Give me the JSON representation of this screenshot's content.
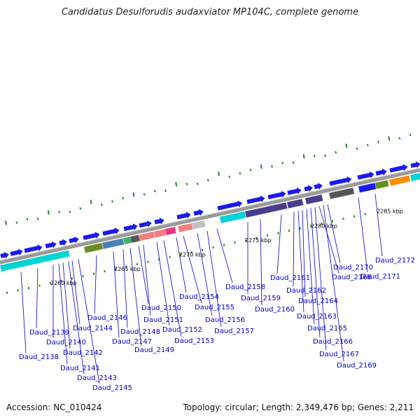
{
  "title": "Candidatus Desulforudis audaxviator MP104C, complete genome",
  "footer": {
    "accession": "Accession: NC_010424",
    "summary": "Topology: circular; Length: 2,349,476 bp; Genes: 2,211"
  },
  "colors": {
    "label": "#0000cc",
    "leader": "#0000cc",
    "backbone": "#9a9a9a",
    "gc_tick": "#228b22",
    "forward_gene": "#1a1aee",
    "reverse_gene": "#1a1aee"
  },
  "kbp_markers": [
    "2260 kbp",
    "2265 kbp",
    "2270 kbp",
    "2275 kbp",
    "2280 kbp",
    "2285 kbp"
  ],
  "genes": [
    "Daud_2138",
    "Daud_2139",
    "Daud_2140",
    "Daud_2141",
    "Daud_2142",
    "Daud_2143",
    "Daud_2144",
    "Daud_2145",
    "Daud_2146",
    "Daud_2147",
    "Daud_2148",
    "Daud_2149",
    "Daud_2150",
    "Daud_2151",
    "Daud_2152",
    "Daud_2153",
    "Daud_2154",
    "Daud_2155",
    "Daud_2156",
    "Daud_2157",
    "Daud_2158",
    "Daud_2159",
    "Daud_2160",
    "Daud_2161",
    "Daud_2162",
    "Daud_2163",
    "Daud_2164",
    "Daud_2165",
    "Daud_2166",
    "Daud_2167",
    "Daud_2168",
    "Daud_2169",
    "Daud_2170",
    "Daud_2171",
    "Daud_2172"
  ]
}
